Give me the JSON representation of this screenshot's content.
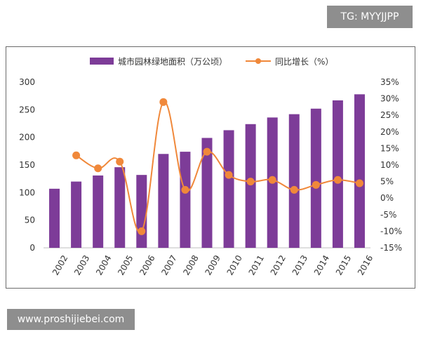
{
  "watermarks": {
    "top": "TG: MYYJJPP",
    "bottom": "www.proshijiebei.com"
  },
  "chart_data": {
    "type": "bar",
    "categories": [
      "2002",
      "2003",
      "2004",
      "2005",
      "2006",
      "2007",
      "2008",
      "2009",
      "2010",
      "2011",
      "2012",
      "2013",
      "2014",
      "2015",
      "2016"
    ],
    "series": [
      {
        "name": "城市园林绿地面积（万公顷）",
        "type": "bar",
        "axis": "left",
        "color": "#7d3c98",
        "values": [
          107,
          120,
          131,
          146,
          132,
          170,
          174,
          199,
          213,
          224,
          236,
          242,
          252,
          267,
          278
        ]
      },
      {
        "name": "同比增长（%）",
        "type": "line",
        "axis": "right",
        "color": "#f0883a",
        "values": [
          null,
          12.9,
          9.0,
          11.0,
          -10.0,
          29.0,
          2.5,
          14.0,
          7.0,
          5.0,
          5.5,
          2.5,
          4.0,
          5.5,
          4.5
        ]
      }
    ],
    "y_left": {
      "min": 0,
      "max": 300,
      "ticks": [
        "0",
        "50",
        "100",
        "150",
        "200",
        "250",
        "300"
      ]
    },
    "y_right": {
      "min": -15,
      "max": 35,
      "ticks": [
        "-15%",
        "-10%",
        "-5%",
        "0%",
        "5%",
        "10%",
        "15%",
        "20%",
        "25%",
        "30%",
        "35%"
      ]
    },
    "legend_position": "top",
    "grid": false
  }
}
